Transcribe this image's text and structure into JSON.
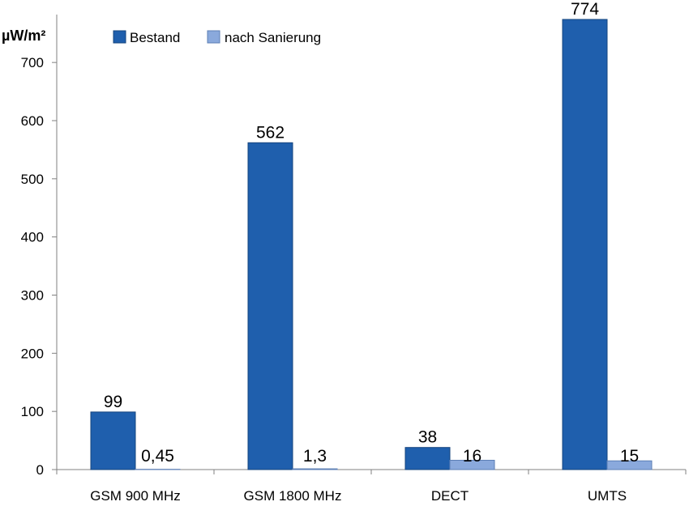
{
  "chart_data": {
    "type": "bar",
    "title": "",
    "xlabel": "",
    "ylabel": "µW/m²",
    "ylim": [
      0,
      774
    ],
    "yticks": [
      0,
      100,
      200,
      300,
      400,
      500,
      600,
      700
    ],
    "grid": false,
    "legend_position": "top-left",
    "categories": [
      "GSM 900 MHz",
      "GSM 1800 MHz",
      "DECT",
      "UMTS"
    ],
    "series": [
      {
        "name": "Bestand",
        "color": "#1f5fad",
        "values": [
          99,
          562,
          38,
          774
        ],
        "labels": [
          "99",
          "562",
          "38",
          "774"
        ]
      },
      {
        "name": "nach Sanierung",
        "color": "#8aa9dc",
        "values": [
          0.45,
          1.3,
          16,
          15
        ],
        "labels": [
          "0,45",
          "1,3",
          "16",
          "15"
        ]
      }
    ]
  }
}
